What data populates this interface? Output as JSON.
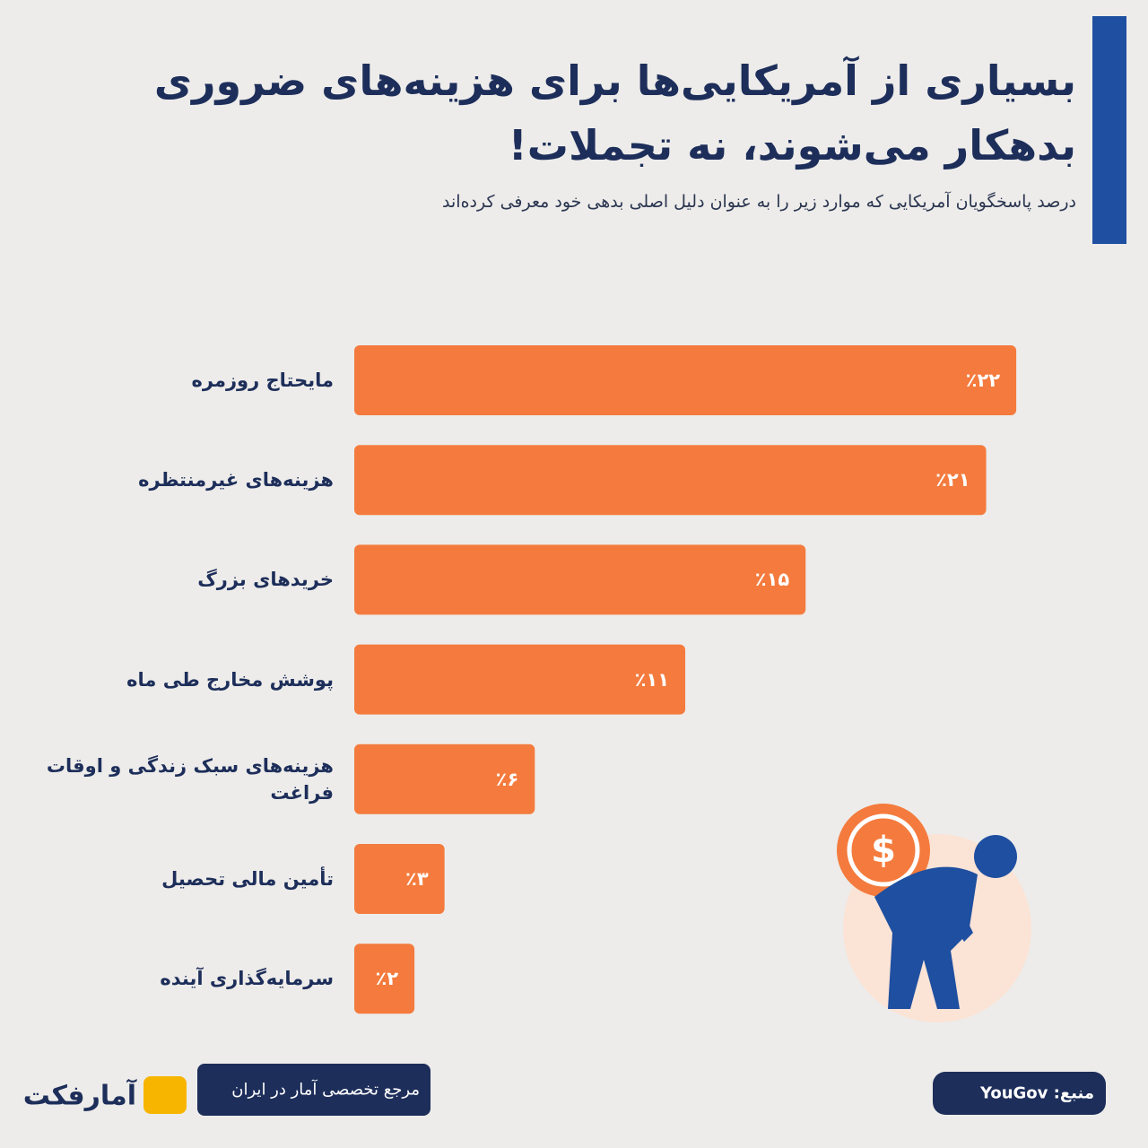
{
  "chart_data": {
    "type": "bar",
    "orientation": "horizontal",
    "title": [
      "بسیاری از آمریکایی‌ها برای هزینه‌های ضروری",
      "بدهکار می‌شوند، نه تجملات!"
    ],
    "subtitle": "درصد پاسخگویان آمریکایی که موارد زیر را به عنوان دلیل اصلی بدهی خود معرفی کرده‌اند",
    "categories": [
      "مایحتاج روزمره",
      "هزینه‌های غیرمنتظره",
      "خریدهای بزرگ",
      "پوشش مخارج طی ماه",
      "هزینه‌های سبک زندگی و اوقات فراغت",
      "تأمین مالی تحصیل",
      "سرمایه‌گذاری آینده"
    ],
    "values": [
      22,
      21,
      15,
      11,
      6,
      3,
      2
    ],
    "value_labels": [
      "٪۲۲",
      "٪۲۱",
      "٪۱۵",
      "٪۱۱",
      "٪۶",
      "٪۳",
      "٪۲"
    ],
    "color": "#f47b3d",
    "source": "منبع: YouGov",
    "tagline": "مرجع تخصصی آمار در ایران",
    "brand": "آمارفکت"
  }
}
